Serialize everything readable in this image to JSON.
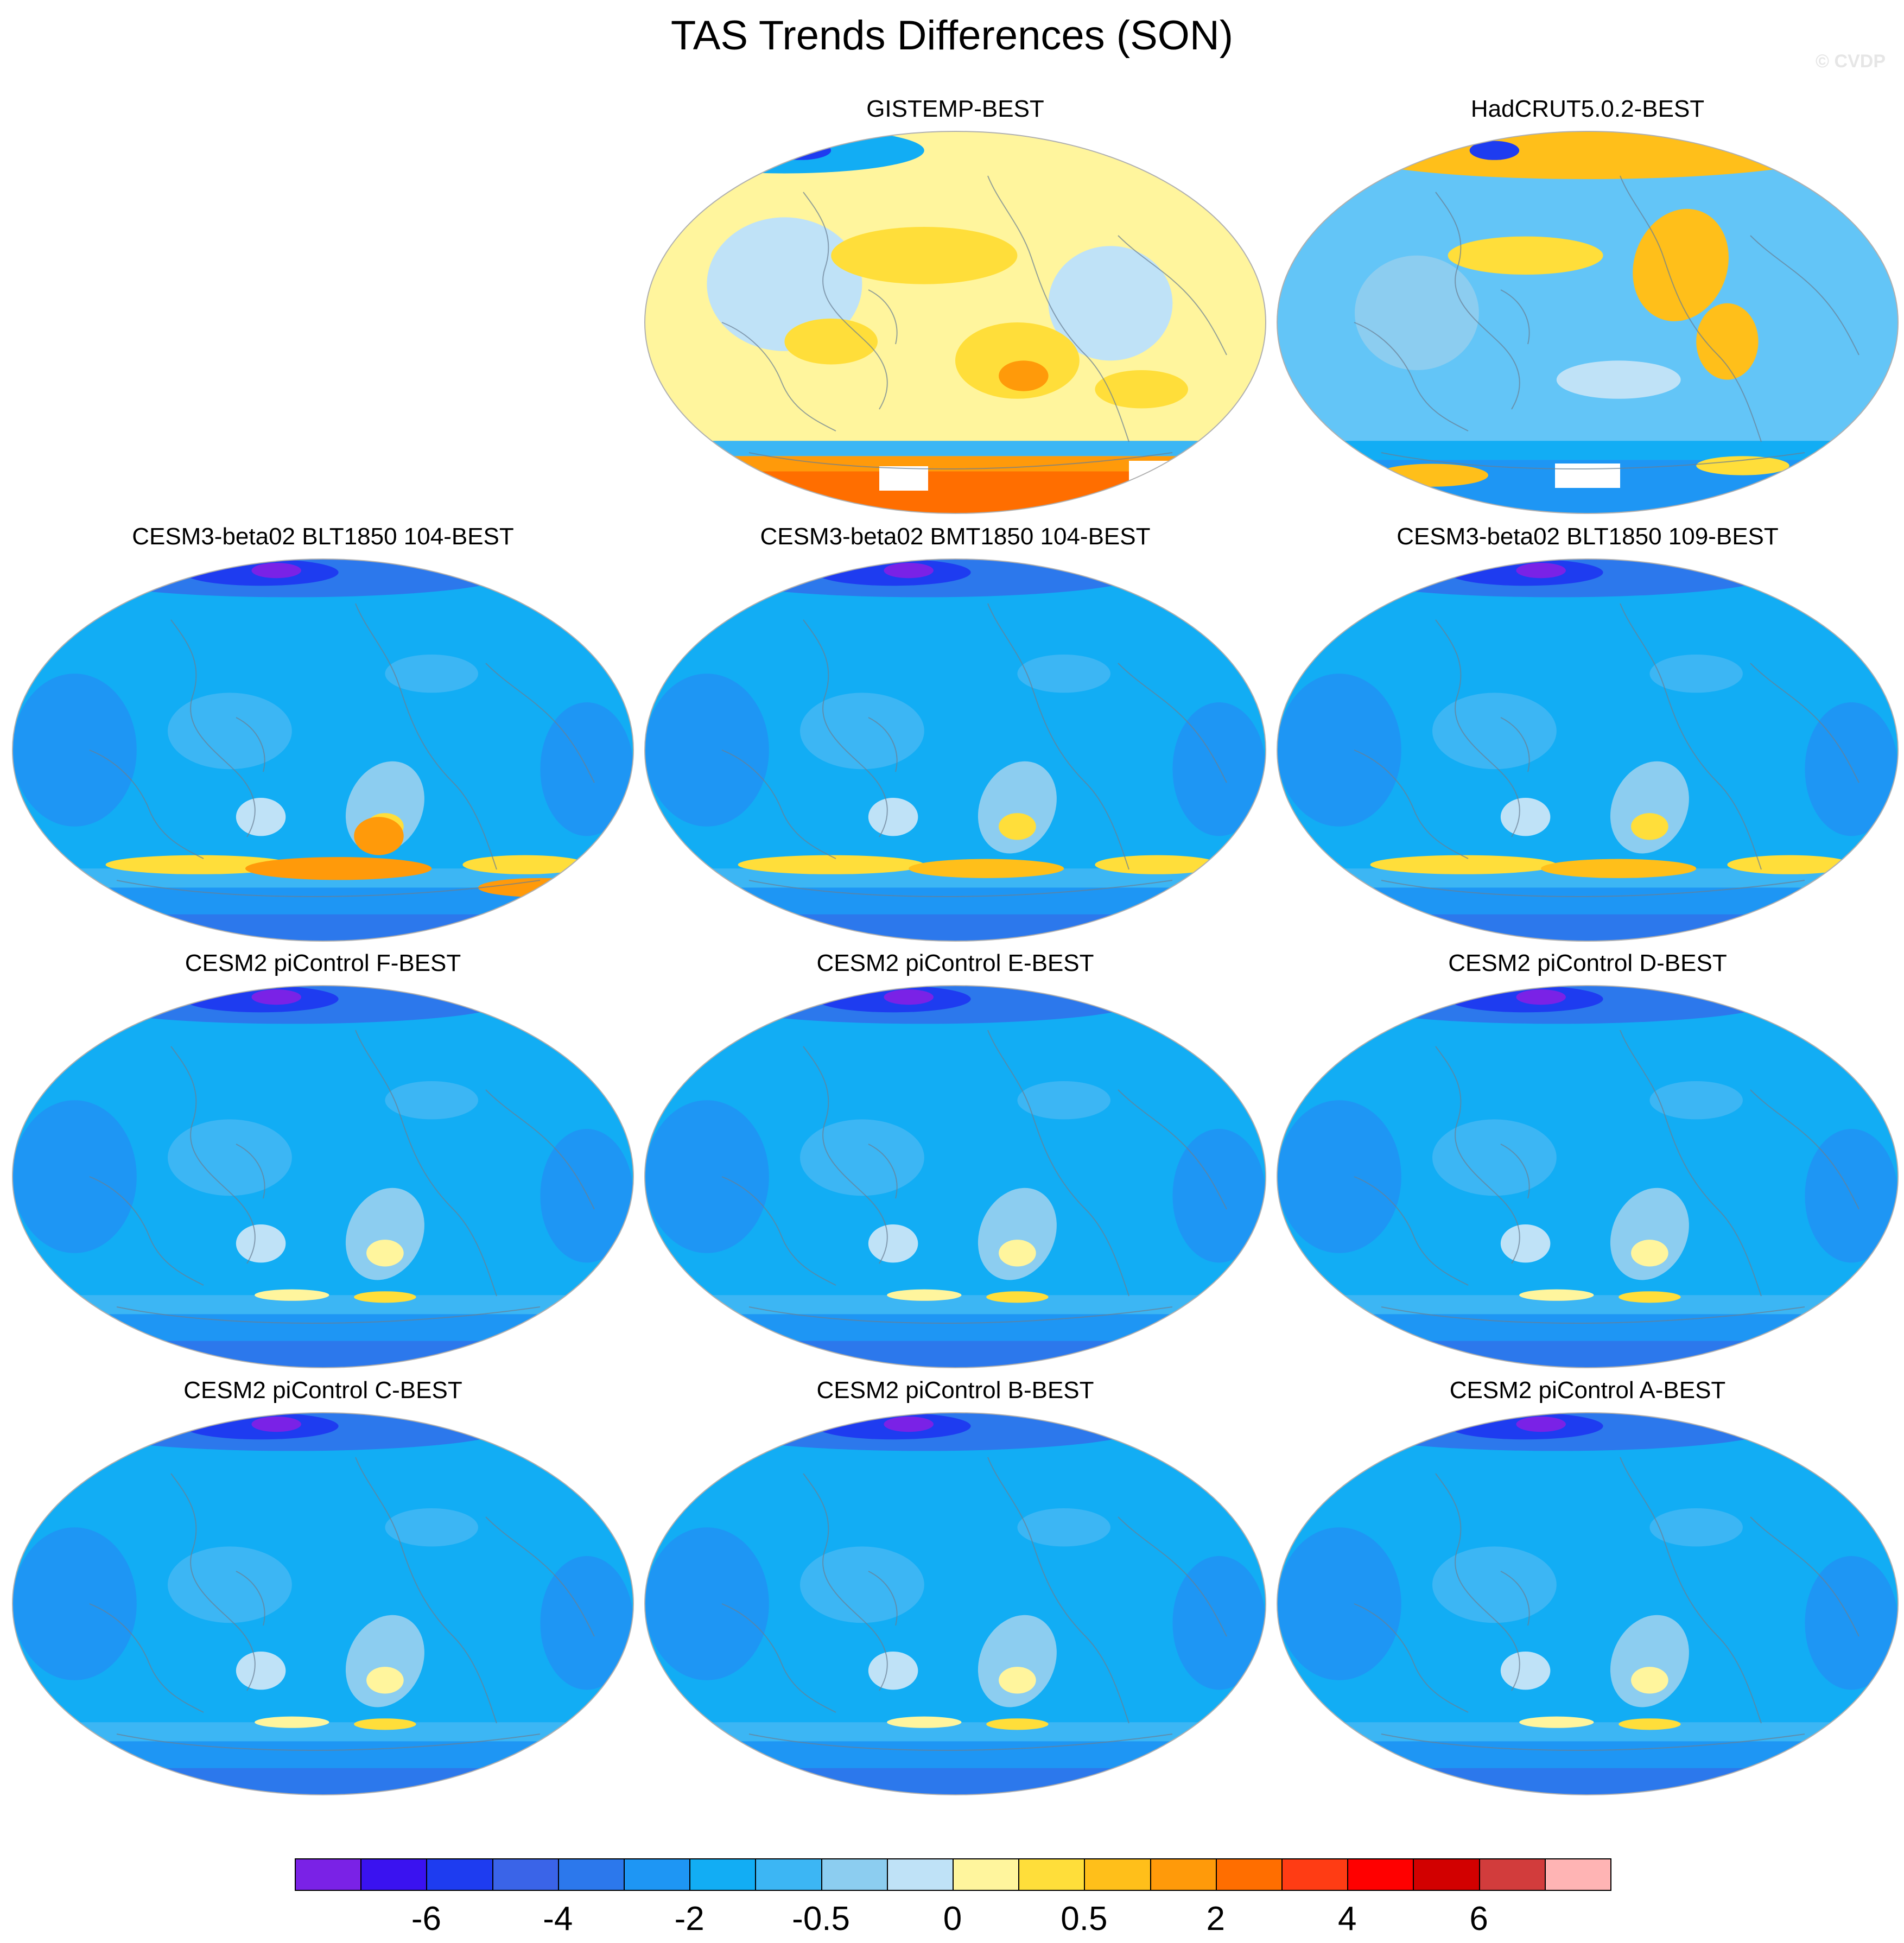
{
  "title": "TAS Trends Differences (SON)",
  "watermark": "© CVDP",
  "panels": [
    {
      "id": "gistemp",
      "title": "GISTEMP-BEST",
      "base": "#fff59d",
      "style": "obs_warm"
    },
    {
      "id": "hadcrut",
      "title": "HadCRUT5.0.2-BEST",
      "base": "#63c5f7",
      "style": "obs_mixed"
    },
    {
      "id": "blt104",
      "title": "CESM3-beta02 BLT1850 104-BEST",
      "base": "#12adf4",
      "style": "model_strong"
    },
    {
      "id": "bmt104",
      "title": "CESM3-beta02 BMT1850 104-BEST",
      "base": "#12adf4",
      "style": "model_mid"
    },
    {
      "id": "blt109",
      "title": "CESM3-beta02 BLT1850 109-BEST",
      "base": "#12adf4",
      "style": "model_mid"
    },
    {
      "id": "picF",
      "title": "CESM2 piControl F-BEST",
      "base": "#12adf4",
      "style": "model_weak"
    },
    {
      "id": "picE",
      "title": "CESM2 piControl E-BEST",
      "base": "#12adf4",
      "style": "model_weak"
    },
    {
      "id": "picD",
      "title": "CESM2 piControl D-BEST",
      "base": "#12adf4",
      "style": "model_weak"
    },
    {
      "id": "picC",
      "title": "CESM2 piControl C-BEST",
      "base": "#12adf4",
      "style": "model_weak"
    },
    {
      "id": "picB",
      "title": "CESM2 piControl B-BEST",
      "base": "#12adf4",
      "style": "model_weak"
    },
    {
      "id": "picA",
      "title": "CESM2 piControl A-BEST",
      "base": "#12adf4",
      "style": "model_weak"
    }
  ],
  "colorbar": {
    "colors": [
      "#7a22e6",
      "#3a12f0",
      "#1e3cf0",
      "#3a64e8",
      "#2c78ec",
      "#1e96f4",
      "#12adf4",
      "#3cb6f4",
      "#8ccdf0",
      "#bfe2f7",
      "#fff59d",
      "#ffde3a",
      "#ffbf1a",
      "#ff9a0a",
      "#ff6e00",
      "#ff3c14",
      "#ff0000",
      "#d20000",
      "#d23c3c",
      "#ffb4b4"
    ],
    "labels": [
      "-6",
      "-4",
      "-2",
      "-0.5",
      "0",
      "0.5",
      "2",
      "4",
      "6"
    ],
    "label_boundaries": [
      2,
      4,
      6,
      8,
      10,
      12,
      14,
      16,
      18
    ]
  }
}
